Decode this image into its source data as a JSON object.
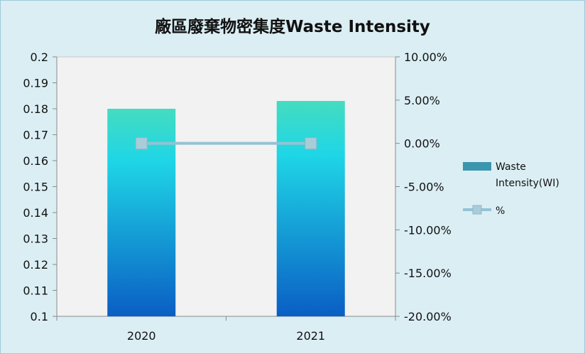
{
  "chart_data": {
    "type": "bar",
    "title": "廠區廢棄物密集度Waste Intensity",
    "categories": [
      "2020",
      "2021"
    ],
    "series": [
      {
        "name": "Waste Intensity(WI)",
        "type": "bar",
        "axis": "left",
        "values": [
          0.18,
          0.183
        ]
      },
      {
        "name": "%",
        "type": "line",
        "axis": "right",
        "values": [
          0.0,
          0.0
        ]
      }
    ],
    "y_left": {
      "min": 0.1,
      "max": 0.2,
      "ticks": [
        "0.1",
        "0.11",
        "0.12",
        "0.13",
        "0.14",
        "0.15",
        "0.16",
        "0.17",
        "0.18",
        "0.19",
        "0.2"
      ]
    },
    "y_right": {
      "min": -20,
      "max": 10,
      "ticks": [
        "-20.00%",
        "-15.00%",
        "-10.00%",
        "-5.00%",
        "0.00%",
        "5.00%",
        "10.00%"
      ]
    },
    "legend": {
      "position": "right",
      "bar_label_line1": "Waste",
      "bar_label_line2": "Intensity(WI)",
      "line_label": "%"
    },
    "grid": false,
    "colors": {
      "bar_top": "#44dcc0",
      "bar_mid": "#1fd6e6",
      "bar_bottom": "#0a5ec4",
      "line": "#93c3d4",
      "marker": "#a9ccd9",
      "legend_bar": "#3a96ae",
      "plot_bg": "#f2f2f2"
    }
  }
}
